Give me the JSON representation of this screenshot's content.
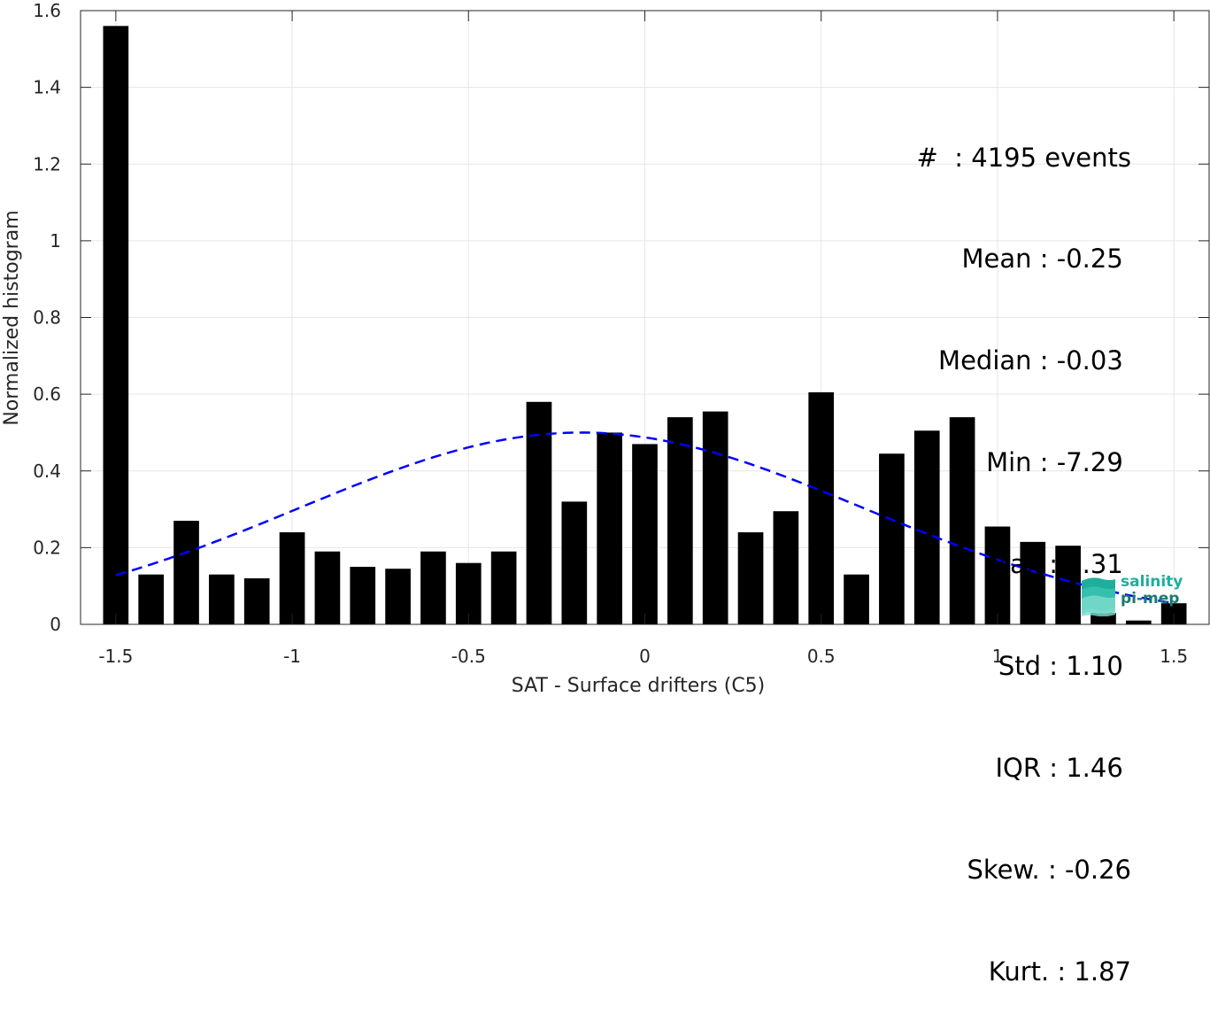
{
  "chart_data": {
    "type": "bar",
    "xlabel": "SAT - Surface drifters (C5)",
    "ylabel": "Normalized histogram",
    "xlim": [
      -1.6,
      1.6
    ],
    "ylim": [
      0,
      1.6
    ],
    "xticks": [
      -1.5,
      -1,
      -0.5,
      0,
      0.5,
      1,
      1.5
    ],
    "xtick_labels": [
      "-1.5",
      "-1",
      "-0.5",
      "0",
      "0.5",
      "1",
      "1.5"
    ],
    "yticks": [
      0,
      0.2,
      0.4,
      0.6,
      0.8,
      1,
      1.2,
      1.4,
      1.6
    ],
    "ytick_labels": [
      "0",
      "0.2",
      "0.4",
      "0.6",
      "0.8",
      "1",
      "1.2",
      "1.4",
      "1.6"
    ],
    "grid": true,
    "bar_color": "#000000",
    "x": [
      -1.5,
      -1.4,
      -1.3,
      -1.2,
      -1.1,
      -1.0,
      -0.9,
      -0.8,
      -0.7,
      -0.6,
      -0.5,
      -0.4,
      -0.3,
      -0.2,
      -0.1,
      0.0,
      0.1,
      0.2,
      0.3,
      0.4,
      0.5,
      0.6,
      0.7,
      0.8,
      0.9,
      1.0,
      1.1,
      1.2,
      1.3,
      1.4,
      1.5
    ],
    "values": [
      1.56,
      0.13,
      0.27,
      0.13,
      0.12,
      0.24,
      0.19,
      0.15,
      0.145,
      0.19,
      0.16,
      0.19,
      0.58,
      0.32,
      0.5,
      0.47,
      0.54,
      0.555,
      0.24,
      0.295,
      0.605,
      0.13,
      0.445,
      0.505,
      0.54,
      0.255,
      0.215,
      0.205,
      0.03,
      0.01,
      0.055
    ],
    "fit_curve": {
      "style": "dashed",
      "color": "#0000ff",
      "mean": -0.18,
      "std": 0.8,
      "peak": 0.5,
      "x_range": [
        -1.5,
        1.5
      ]
    }
  },
  "stats": {
    "lines": [
      "#  : 4195 events",
      "Mean : -0.25 ",
      "Median : -0.03 ",
      "Min : -7.29 ",
      "Max : 3.31 ",
      "Std : 1.10 ",
      "IQR : 1.46 ",
      "Skew. : -0.26",
      "Kurt. : 1.87"
    ]
  },
  "logo": {
    "line1": "salinity",
    "line2": "pi-mep"
  }
}
